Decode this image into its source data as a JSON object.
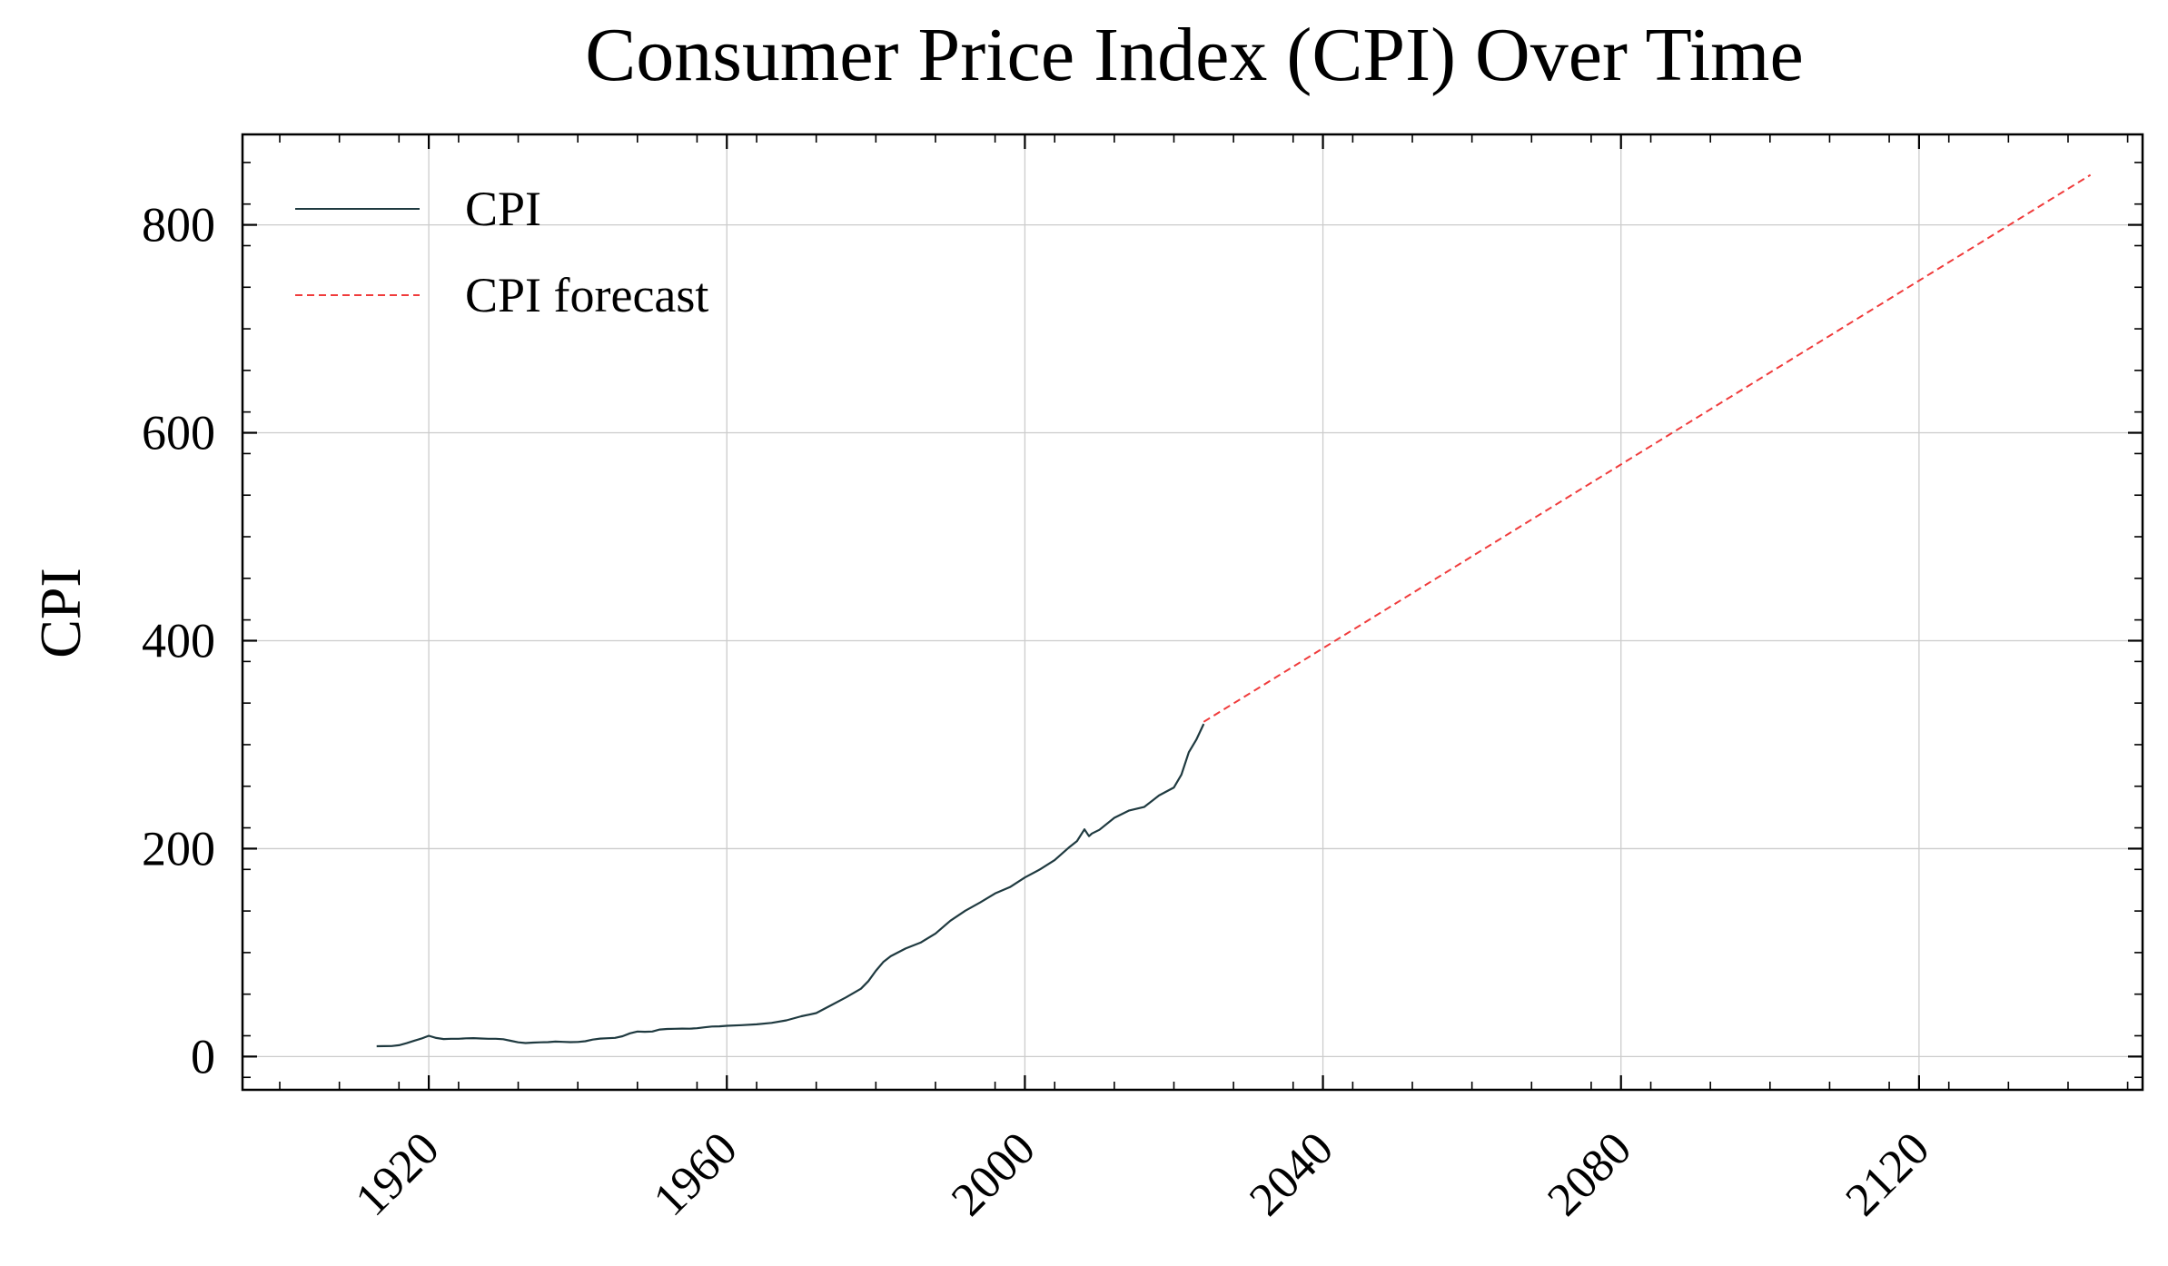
{
  "chart_data": {
    "type": "line",
    "title": "Consumer Price Index (CPI) Over Time",
    "xlabel": "",
    "ylabel": "CPI",
    "xlim": [
      1895,
      2150
    ],
    "ylim": [
      -32,
      887
    ],
    "grid": true,
    "legend_position": "top-left",
    "x_ticks": [
      1920,
      1960,
      2000,
      2040,
      2080,
      2120
    ],
    "x_tick_labels": [
      "1920",
      "1960",
      "2000",
      "2040",
      "2080",
      "2120"
    ],
    "y_ticks": [
      0,
      200,
      400,
      600,
      800
    ],
    "y_tick_labels": [
      "0",
      "200",
      "400",
      "600",
      "800"
    ],
    "colors": {
      "cpi": "#1f3a40",
      "forecast": "#f03c3c",
      "grid": "#cccccc",
      "axis": "#000000"
    },
    "series": [
      {
        "name": "CPI",
        "style": "solid",
        "x": [
          1913,
          1914,
          1915,
          1916,
          1917,
          1918,
          1919,
          1920,
          1921,
          1922,
          1923,
          1924,
          1925,
          1926,
          1927,
          1928,
          1929,
          1930,
          1931,
          1932,
          1933,
          1934,
          1935,
          1936,
          1937,
          1938,
          1939,
          1940,
          1941,
          1942,
          1943,
          1944,
          1945,
          1946,
          1947,
          1948,
          1949,
          1950,
          1951,
          1952,
          1953,
          1954,
          1955,
          1956,
          1957,
          1958,
          1959,
          1960,
          1962,
          1964,
          1966,
          1968,
          1970,
          1972,
          1974,
          1976,
          1978,
          1979,
          1980,
          1981,
          1982,
          1984,
          1986,
          1988,
          1990,
          1992,
          1994,
          1996,
          1998,
          2000,
          2002,
          2004,
          2006,
          2007,
          2008,
          2008.6,
          2009,
          2010,
          2012,
          2014,
          2016,
          2018,
          2020,
          2021,
          2022,
          2023,
          2024
        ],
        "y": [
          9.9,
          10.0,
          10.1,
          10.9,
          12.8,
          15.1,
          17.3,
          20.0,
          17.9,
          16.8,
          17.1,
          17.1,
          17.5,
          17.7,
          17.4,
          17.1,
          17.1,
          16.7,
          15.2,
          13.7,
          13.0,
          13.4,
          13.7,
          13.9,
          14.4,
          14.1,
          13.9,
          14.0,
          14.7,
          16.3,
          17.3,
          17.6,
          18.0,
          19.5,
          22.3,
          24.1,
          23.8,
          24.1,
          26.0,
          26.5,
          26.7,
          26.9,
          26.8,
          27.2,
          28.1,
          28.9,
          29.1,
          29.6,
          30.2,
          31.0,
          32.4,
          34.8,
          38.8,
          41.8,
          49.3,
          56.9,
          65.2,
          72.6,
          82.4,
          90.9,
          96.5,
          103.9,
          109.6,
          118.3,
          130.7,
          140.3,
          148.2,
          156.9,
          163.0,
          172.2,
          179.9,
          188.9,
          201.6,
          207.3,
          218.5,
          212.0,
          214.5,
          218.1,
          229.6,
          236.7,
          240.0,
          251.1,
          258.8,
          271.0,
          292.7,
          304.7,
          320.0
        ]
      },
      {
        "name": "CPI forecast",
        "style": "dashed",
        "x": [
          2024,
          2143
        ],
        "y": [
          322,
          848
        ]
      }
    ]
  }
}
